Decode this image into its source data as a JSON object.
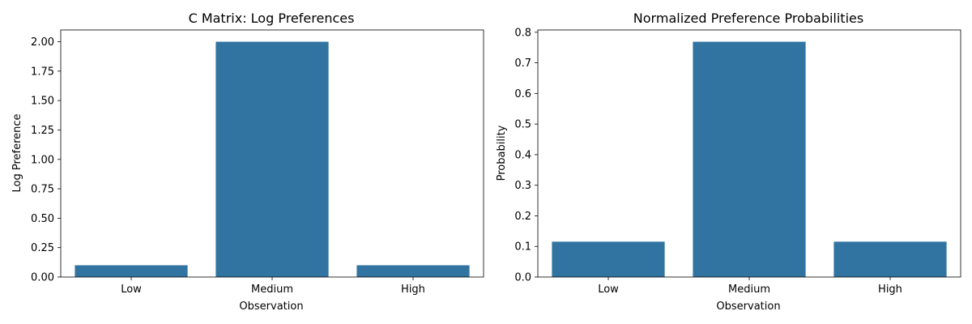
{
  "chart_data": [
    {
      "type": "bar",
      "title": "C Matrix: Log Preferences",
      "xlabel": "Observation",
      "ylabel": "Log Preference",
      "categories": [
        "Low",
        "Medium",
        "High"
      ],
      "values": [
        0.1,
        2.0,
        0.1
      ],
      "ylim": [
        0,
        2.1
      ],
      "yticks": [
        "0.00",
        "0.25",
        "0.50",
        "0.75",
        "1.00",
        "1.25",
        "1.50",
        "1.75",
        "2.00"
      ],
      "grid": false,
      "color": "#3274a1"
    },
    {
      "type": "bar",
      "title": "Normalized Preference Probabilities",
      "xlabel": "Observation",
      "ylabel": "Probability",
      "categories": [
        "Low",
        "Medium",
        "High"
      ],
      "values": [
        0.1155,
        0.769,
        0.1155
      ],
      "ylim": [
        0,
        0.8075
      ],
      "yticks": [
        "0.0",
        "0.1",
        "0.2",
        "0.3",
        "0.4",
        "0.5",
        "0.6",
        "0.7",
        "0.8"
      ],
      "grid": false,
      "color": "#3274a1"
    }
  ]
}
